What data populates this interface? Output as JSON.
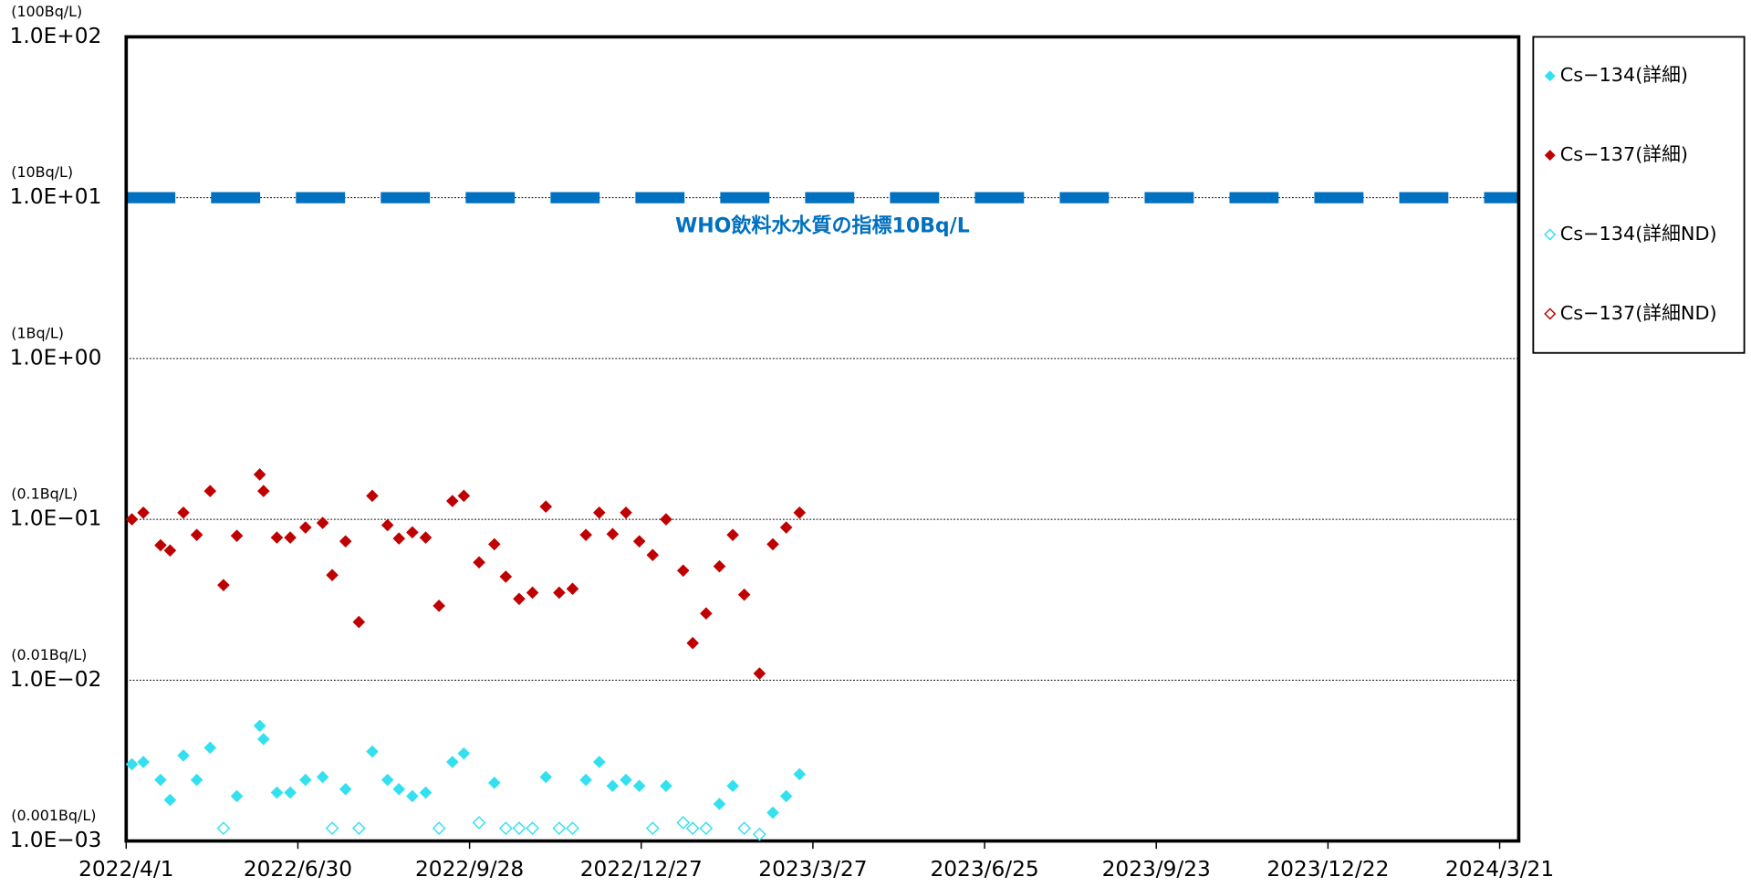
{
  "chart_data": {
    "type": "scatter",
    "log_y": true,
    "xlim": [
      "2022/4/1",
      "2024/3/31"
    ],
    "xticks": [
      "2022/4/1",
      "2022/6/30",
      "2022/9/28",
      "2022/12/27",
      "2023/3/27",
      "2023/6/25",
      "2023/9/23",
      "2023/12/22",
      "2024/3/21"
    ],
    "ylim": [
      0.001,
      100
    ],
    "yticks": [
      {
        "value": 0.001,
        "label": "1.0E−03",
        "unit": "(0.001Bq/L)"
      },
      {
        "value": 0.01,
        "label": "1.0E−02",
        "unit": "(0.01Bq/L)"
      },
      {
        "value": 0.1,
        "label": "1.0E−01",
        "unit": "(0.1Bq/L)"
      },
      {
        "value": 1,
        "label": "1.0E+00",
        "unit": "(1Bq/L)"
      },
      {
        "value": 10,
        "label": "1.0E+01",
        "unit": "(10Bq/L)"
      },
      {
        "value": 100,
        "label": "1.0E+02",
        "unit": "(100Bq/L)"
      }
    ],
    "grid": true,
    "reference_lines": [
      {
        "value": 10,
        "label": "WHO飲料水水質の指標10Bq/L",
        "color": "#0070c0"
      }
    ],
    "legend": "right",
    "series": [
      {
        "name": "Cs−134(詳細)",
        "color": "#33e0f0",
        "filled": true,
        "x": [
          "2022/4/4",
          "2022/4/10",
          "2022/4/19",
          "2022/4/24",
          "2022/5/1",
          "2022/5/8",
          "2022/5/15",
          "2022/5/29",
          "2022/6/10",
          "2022/6/12",
          "2022/6/19",
          "2022/6/26",
          "2022/7/4",
          "2022/7/13",
          "2022/7/25",
          "2022/8/8",
          "2022/8/16",
          "2022/8/22",
          "2022/8/29",
          "2022/9/5",
          "2022/9/19",
          "2022/9/25",
          "2022/10/11",
          "2022/10/17",
          "2022/11/7",
          "2022/11/28",
          "2022/12/5",
          "2022/12/12",
          "2022/12/19",
          "2022/12/26",
          "2023/1/9",
          "2023/2/6",
          "2023/2/13",
          "2023/3/6",
          "2023/3/13",
          "2023/3/20"
        ],
        "values": [
          0.003,
          0.0031,
          0.0024,
          0.0018,
          0.0034,
          0.0024,
          0.0038,
          0.0019,
          0.0052,
          0.0043,
          0.002,
          0.002,
          0.0024,
          0.0025,
          0.0021,
          0.0036,
          0.0024,
          0.0021,
          0.0019,
          0.002,
          0.0031,
          0.0035,
          0.0023,
          0.0012,
          0.0025,
          0.0024,
          0.0031,
          0.0022,
          0.0024,
          0.0022,
          0.0022,
          0.0017,
          0.0022,
          0.0015,
          0.0019,
          0.0026
        ]
      },
      {
        "name": "Cs−137(詳細)",
        "color": "#c00000",
        "filled": true,
        "x": [
          "2022/4/4",
          "2022/4/10",
          "2022/4/19",
          "2022/4/24",
          "2022/5/1",
          "2022/5/8",
          "2022/5/15",
          "2022/5/22",
          "2022/5/29",
          "2022/6/10",
          "2022/6/12",
          "2022/6/19",
          "2022/6/26",
          "2022/7/4",
          "2022/7/13",
          "2022/7/18",
          "2022/7/25",
          "2022/8/1",
          "2022/8/8",
          "2022/8/16",
          "2022/8/22",
          "2022/8/29",
          "2022/9/5",
          "2022/9/12",
          "2022/9/19",
          "2022/9/25",
          "2022/10/3",
          "2022/10/11",
          "2022/10/17",
          "2022/10/24",
          "2022/10/31",
          "2022/11/7",
          "2022/11/14",
          "2022/11/21",
          "2022/11/28",
          "2022/12/5",
          "2022/12/12",
          "2022/12/19",
          "2022/12/26",
          "2023/1/2",
          "2023/1/9",
          "2023/1/18",
          "2023/1/23",
          "2023/1/30",
          "2023/2/6",
          "2023/2/13",
          "2023/2/19",
          "2023/2/27",
          "2023/3/6",
          "2023/3/13",
          "2023/3/20"
        ],
        "values": [
          0.1,
          0.11,
          0.069,
          0.064,
          0.11,
          0.08,
          0.15,
          0.039,
          0.079,
          0.19,
          0.15,
          0.077,
          0.077,
          0.089,
          0.095,
          0.045,
          0.073,
          0.023,
          0.14,
          0.092,
          0.076,
          0.083,
          0.077,
          0.029,
          0.13,
          0.14,
          0.054,
          0.07,
          0.044,
          0.032,
          0.035,
          0.12,
          0.035,
          0.037,
          0.08,
          0.11,
          0.081,
          0.11,
          0.073,
          0.06,
          0.1,
          0.048,
          0.017,
          0.026,
          0.051,
          0.08,
          0.034,
          0.011,
          0.07,
          0.089,
          0.11
        ]
      },
      {
        "name": "Cs−134(詳細ND)",
        "color": "#33e0f0",
        "filled": false,
        "x": [
          "2022/5/22",
          "2022/7/18",
          "2022/8/1",
          "2022/9/12",
          "2022/10/3",
          "2022/10/17",
          "2022/10/24",
          "2022/10/31",
          "2022/11/14",
          "2022/11/21",
          "2023/1/2",
          "2023/1/18",
          "2023/1/23",
          "2023/1/30",
          "2023/2/19",
          "2023/2/27"
        ],
        "values": [
          0.0012,
          0.0012,
          0.0012,
          0.0012,
          0.0013,
          0.0012,
          0.0012,
          0.0012,
          0.0012,
          0.0012,
          0.0012,
          0.0013,
          0.0012,
          0.0012,
          0.0012,
          0.0011
        ]
      },
      {
        "name": "Cs−137(詳細ND)",
        "color": "#c00000",
        "filled": false,
        "x": [],
        "values": []
      }
    ]
  }
}
